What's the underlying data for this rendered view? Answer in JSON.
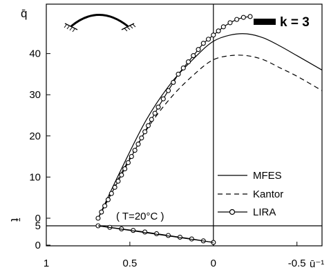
{
  "chart_data": {
    "type": "line",
    "k_label": "k = 3",
    "x_axis": {
      "label": "ū⁻¹",
      "lim": [
        1,
        -0.65
      ],
      "reversed": true,
      "ticks": [
        {
          "v": 1,
          "label": "1"
        },
        {
          "v": 0.5,
          "label": "0.5"
        },
        {
          "v": 0,
          "label": "0"
        },
        {
          "v": -0.5,
          "label": "-0.5"
        }
      ]
    },
    "y_axis_upper": {
      "label": "q̄",
      "lim": [
        0,
        50
      ],
      "ticks": [
        {
          "v": 0,
          "label": "0"
        },
        {
          "v": 10,
          "label": "10"
        },
        {
          "v": 20,
          "label": "20"
        },
        {
          "v": 30,
          "label": "30"
        },
        {
          "v": 40,
          "label": "40"
        }
      ]
    },
    "y_axis_lower": {
      "label": "t̄",
      "lim": [
        0,
        5
      ],
      "ticks": [
        {
          "v": 0,
          "label": "0"
        },
        {
          "v": 5,
          "label": "5"
        }
      ]
    },
    "annotation": "( T=20°C )",
    "legend": {
      "position": "bottom-right",
      "entries": [
        {
          "label": "MFES",
          "style": "solid"
        },
        {
          "label": "Kantor",
          "style": "dashed"
        },
        {
          "label": "LIRA",
          "style": "circles"
        }
      ]
    },
    "series": [
      {
        "name": "MFES",
        "style": "solid",
        "panel": "upper",
        "x": [
          0.69,
          0.55,
          0.4,
          0.25,
          0.1,
          0.0,
          -0.1,
          -0.2,
          -0.3,
          -0.4,
          -0.5,
          -0.65
        ],
        "y": [
          0,
          12,
          24,
          33,
          39.5,
          43,
          44.5,
          44.8,
          43.8,
          41.8,
          39.5,
          36
        ]
      },
      {
        "name": "Kantor",
        "style": "dashed",
        "panel": "upper",
        "x": [
          0.69,
          0.55,
          0.4,
          0.25,
          0.1,
          0.0,
          -0.1,
          -0.2,
          -0.3,
          -0.4,
          -0.5,
          -0.65
        ],
        "y": [
          0,
          11,
          21.5,
          29.5,
          35.5,
          38.5,
          39.5,
          39.5,
          38.5,
          36.5,
          34.5,
          31
        ]
      },
      {
        "name": "LIRA",
        "style": "circles",
        "panel": "upper",
        "x": [
          0.69,
          0.67,
          0.65,
          0.63,
          0.61,
          0.59,
          0.57,
          0.55,
          0.53,
          0.51,
          0.49,
          0.47,
          0.45,
          0.43,
          0.41,
          0.39,
          0.37,
          0.35,
          0.33,
          0.3,
          0.27,
          0.24,
          0.21,
          0.18,
          0.15,
          0.12,
          0.09,
          0.06,
          0.03,
          0.0,
          -0.03,
          -0.06,
          -0.1,
          -0.14,
          -0.18,
          -0.22
        ],
        "y": [
          0,
          1.5,
          3,
          4.5,
          6,
          7.5,
          9,
          10.5,
          12,
          13.5,
          15,
          16.5,
          18,
          19.5,
          21,
          22.5,
          24,
          25.5,
          27,
          29,
          31,
          33,
          35,
          36.5,
          38,
          39.5,
          41,
          42.5,
          43.5,
          44.5,
          45.5,
          46.5,
          47.5,
          48.3,
          48.8,
          49
        ]
      },
      {
        "name": "LIRA",
        "style": "circles",
        "panel": "lower",
        "x": [
          0.69,
          0.62,
          0.55,
          0.48,
          0.41,
          0.34,
          0.27,
          0.2,
          0.13,
          0.06,
          0.0
        ],
        "y": [
          5,
          4.6,
          4.2,
          3.8,
          3.4,
          2.95,
          2.5,
          2.05,
          1.6,
          1.1,
          0.7
        ]
      },
      {
        "name": "",
        "style": "solid",
        "panel": "lower",
        "x": [
          0.69,
          0.0
        ],
        "y": [
          5,
          0.7
        ]
      }
    ]
  }
}
